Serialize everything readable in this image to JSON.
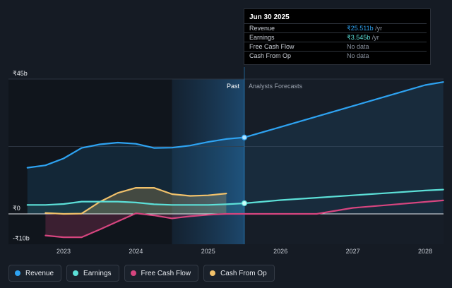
{
  "tooltip": {
    "date": "Jun 30 2025",
    "rows": [
      {
        "label": "Revenue",
        "value": "₹25.511b",
        "unit": " /yr",
        "color": "#2ea3f2"
      },
      {
        "label": "Earnings",
        "value": "₹3.545b",
        "unit": " /yr",
        "color": "#5ce0d8"
      },
      {
        "label": "Free Cash Flow",
        "value": "No data",
        "unit": "",
        "color": "#8b93a0"
      },
      {
        "label": "Cash From Op",
        "value": "No data",
        "unit": "",
        "color": "#8b93a0"
      }
    ]
  },
  "legend": [
    {
      "label": "Revenue",
      "color": "#2ea3f2"
    },
    {
      "label": "Earnings",
      "color": "#5ce0d8"
    },
    {
      "label": "Free Cash Flow",
      "color": "#d6457f"
    },
    {
      "label": "Cash From Op",
      "color": "#f2c26b"
    }
  ],
  "chart_data": {
    "type": "line",
    "title": "",
    "xlabel": "",
    "ylabel": "",
    "ylim": [
      -10,
      45
    ],
    "xlim": [
      2022.5,
      2028.25
    ],
    "y_ticks": [
      {
        "value": 45,
        "label": "₹45b"
      },
      {
        "value": 0,
        "label": "₹0"
      },
      {
        "value": -10,
        "label": "-₹10b"
      }
    ],
    "x_ticks": [
      {
        "value": 2023,
        "label": "2023"
      },
      {
        "value": 2024,
        "label": "2024"
      },
      {
        "value": 2025,
        "label": "2025"
      },
      {
        "value": 2026,
        "label": "2026"
      },
      {
        "value": 2027,
        "label": "2027"
      },
      {
        "value": 2028,
        "label": "2028"
      }
    ],
    "past_label": "Past",
    "forecast_label": "Analysts Forecasts",
    "past_highlight_start": 2024.5,
    "divider_x": 2025.5,
    "series": [
      {
        "name": "Revenue",
        "color": "#2ea3f2",
        "points": [
          [
            2022.5,
            15.4
          ],
          [
            2022.75,
            16.2
          ],
          [
            2023.0,
            18.5
          ],
          [
            2023.25,
            22.0
          ],
          [
            2023.5,
            23.2
          ],
          [
            2023.75,
            23.8
          ],
          [
            2024.0,
            23.4
          ],
          [
            2024.25,
            22.0
          ],
          [
            2024.5,
            22.1
          ],
          [
            2024.75,
            22.8
          ],
          [
            2025.0,
            24.0
          ],
          [
            2025.25,
            25.0
          ],
          [
            2025.5,
            25.511
          ]
        ]
      },
      {
        "name": "Revenue Forecast",
        "color": "#2ea3f2",
        "points": [
          [
            2025.5,
            25.511
          ],
          [
            2026.0,
            29.0
          ],
          [
            2026.5,
            32.5
          ],
          [
            2027.0,
            36.0
          ],
          [
            2027.5,
            39.5
          ],
          [
            2028.0,
            43.0
          ],
          [
            2028.25,
            44.0
          ]
        ]
      },
      {
        "name": "Earnings",
        "color": "#5ce0d8",
        "points": [
          [
            2022.5,
            3.0
          ],
          [
            2022.75,
            3.0
          ],
          [
            2023.0,
            3.3
          ],
          [
            2023.25,
            4.1
          ],
          [
            2023.5,
            4.1
          ],
          [
            2023.75,
            4.1
          ],
          [
            2024.0,
            3.8
          ],
          [
            2024.25,
            3.2
          ],
          [
            2024.5,
            3.0
          ],
          [
            2024.75,
            3.0
          ],
          [
            2025.0,
            3.0
          ],
          [
            2025.25,
            3.2
          ],
          [
            2025.5,
            3.545
          ]
        ]
      },
      {
        "name": "Earnings Forecast",
        "color": "#5ce0d8",
        "points": [
          [
            2025.5,
            3.545
          ],
          [
            2026.0,
            4.6
          ],
          [
            2026.5,
            5.4
          ],
          [
            2027.0,
            6.2
          ],
          [
            2027.5,
            7.0
          ],
          [
            2028.0,
            7.8
          ],
          [
            2028.25,
            8.1
          ]
        ]
      },
      {
        "name": "Free Cash Flow",
        "color": "#d6457f",
        "points": [
          [
            2022.75,
            -7.2
          ],
          [
            2023.0,
            -7.8
          ],
          [
            2023.25,
            -7.8
          ],
          [
            2023.5,
            -5.2
          ],
          [
            2023.75,
            -2.5
          ],
          [
            2024.0,
            0.2
          ],
          [
            2024.25,
            -0.5
          ],
          [
            2024.5,
            -1.5
          ],
          [
            2024.75,
            -0.8
          ],
          [
            2025.0,
            -0.3
          ],
          [
            2025.25,
            0.0
          ],
          [
            2025.5,
            0.0
          ]
        ]
      },
      {
        "name": "Free Cash Flow Forecast",
        "color": "#d6457f",
        "points": [
          [
            2025.5,
            0.0
          ],
          [
            2026.0,
            0.0
          ],
          [
            2026.5,
            0.0
          ],
          [
            2027.0,
            2.0
          ],
          [
            2027.5,
            3.0
          ],
          [
            2028.0,
            4.0
          ],
          [
            2028.25,
            4.5
          ]
        ]
      },
      {
        "name": "Cash From Op",
        "color": "#f2c26b",
        "points": [
          [
            2022.75,
            0.3
          ],
          [
            2023.0,
            0.0
          ],
          [
            2023.25,
            0.1
          ],
          [
            2023.5,
            4.0
          ],
          [
            2023.75,
            7.0
          ],
          [
            2024.0,
            8.7
          ],
          [
            2024.25,
            8.7
          ],
          [
            2024.5,
            6.6
          ],
          [
            2024.75,
            6.0
          ],
          [
            2025.0,
            6.2
          ],
          [
            2025.25,
            6.8
          ]
        ]
      }
    ]
  }
}
